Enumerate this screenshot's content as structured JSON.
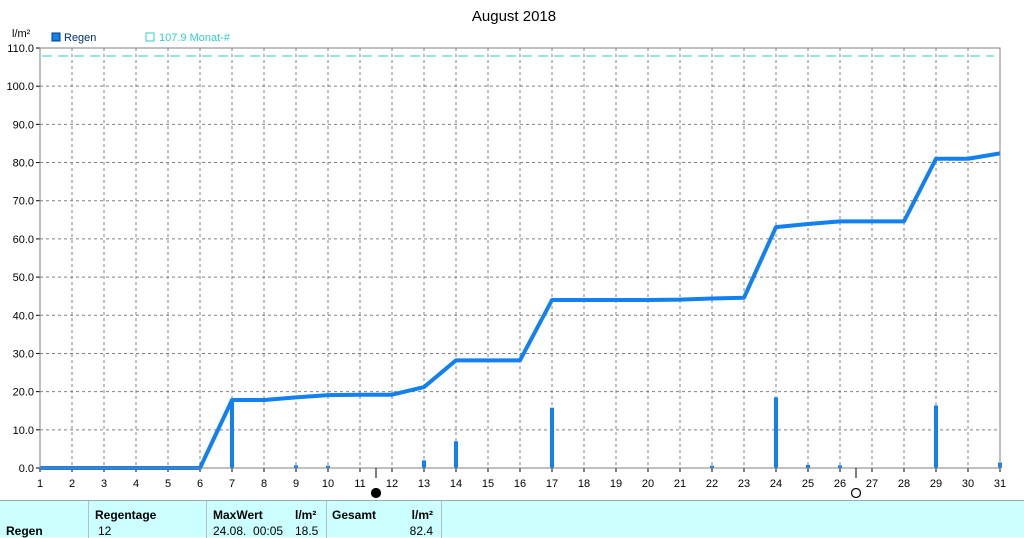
{
  "chart_data": {
    "type": "line",
    "title": "August 2018",
    "ylabel": "l/m²",
    "xlabel": "",
    "ylim": [
      0,
      110
    ],
    "y_ticks": [
      "0.0",
      "10.0",
      "20.0",
      "30.0",
      "40.0",
      "50.0",
      "60.0",
      "70.0",
      "80.0",
      "90.0",
      "100.0",
      "110.0"
    ],
    "x_ticks": [
      "1",
      "2",
      "3",
      "4",
      "5",
      "6",
      "7",
      "8",
      "9",
      "10",
      "11",
      "12",
      "13",
      "14",
      "15",
      "16",
      "17",
      "18",
      "19",
      "20",
      "21",
      "22",
      "23",
      "24",
      "25",
      "26",
      "27",
      "28",
      "29",
      "30",
      "31"
    ],
    "grid": true,
    "legend": {
      "position": "top-left",
      "series_label": "Regen",
      "reference_label": "107.9 Monat-#"
    },
    "reference_line": {
      "value": 107.9
    },
    "cumulative": {
      "x": [
        1,
        6,
        7,
        8,
        9,
        10,
        11,
        12,
        13,
        14,
        15,
        16,
        17,
        18,
        19,
        20,
        21,
        22,
        23,
        24,
        25,
        26,
        27,
        28,
        29,
        30,
        31
      ],
      "values": [
        0,
        0,
        17.8,
        17.8,
        18.5,
        19.1,
        19.2,
        19.2,
        21.2,
        28.2,
        28.2,
        28.2,
        44.0,
        44.0,
        44.0,
        44.0,
        44.1,
        44.4,
        44.6,
        63.1,
        63.9,
        64.6,
        64.6,
        64.6,
        81.0,
        81.0,
        82.4
      ]
    },
    "daily": {
      "x": [
        7,
        9,
        10,
        13,
        14,
        17,
        22,
        24,
        25,
        26,
        29,
        31
      ],
      "values": [
        17.8,
        0.7,
        0.6,
        2.0,
        7.0,
        15.8,
        0.6,
        18.5,
        0.8,
        0.7,
        16.4,
        1.4
      ]
    },
    "moon_phases": [
      {
        "x": 11.5,
        "phase": "new"
      },
      {
        "x": 26.5,
        "phase": "full"
      }
    ],
    "colors": {
      "series": "#1280ee",
      "reference": "#33cccc",
      "grid": "#808080",
      "stats_bg": "#ccffff"
    }
  },
  "stats": {
    "row_label": "Regen",
    "regentage_label": "Regentage",
    "regentage_value": "12",
    "maxwert_label": "MaxWert",
    "maxwert_date": "24.08.  00:05",
    "maxwert_unit_label": "l/m²",
    "maxwert_value": "18.5",
    "gesamt_label": "Gesamt",
    "gesamt_unit_label": "l/m²",
    "gesamt_value": "82.4"
  }
}
